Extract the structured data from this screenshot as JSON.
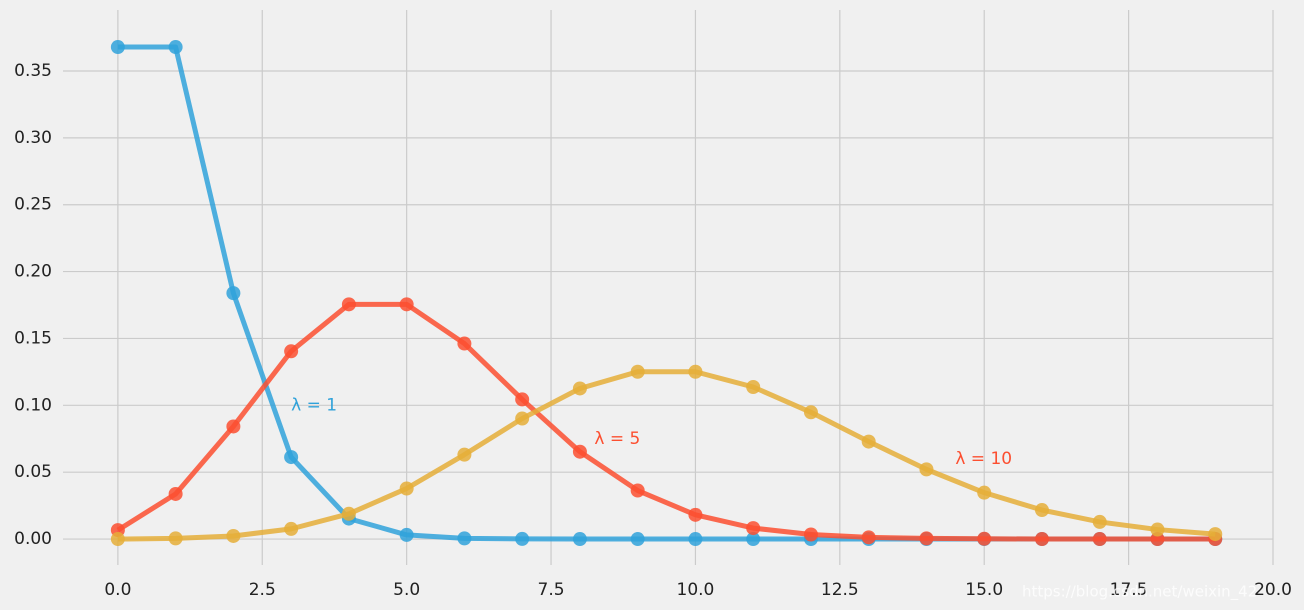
{
  "chart_data": {
    "type": "line",
    "x": [
      0,
      1,
      2,
      3,
      4,
      5,
      6,
      7,
      8,
      9,
      10,
      11,
      12,
      13,
      14,
      15,
      16,
      17,
      18,
      19
    ],
    "series": [
      {
        "color": "#30a2da",
        "values": [
          0.3679,
          0.3679,
          0.1839,
          0.0613,
          0.0153,
          0.0031,
          0.0005,
          0.0001,
          0.0,
          0.0,
          0.0,
          0.0,
          0.0,
          0.0,
          0.0,
          0.0,
          0.0,
          0.0,
          0.0,
          0.0
        ]
      },
      {
        "color": "#fc4f30",
        "values": [
          0.0067,
          0.0337,
          0.0842,
          0.1404,
          0.1755,
          0.1755,
          0.1462,
          0.1044,
          0.0653,
          0.0363,
          0.0181,
          0.0082,
          0.0034,
          0.0013,
          0.0005,
          0.0002,
          0.0,
          0.0,
          0.0,
          0.0
        ]
      },
      {
        "color": "#e5ae38",
        "values": [
          0.0,
          0.0005,
          0.0023,
          0.0076,
          0.0189,
          0.0378,
          0.0631,
          0.0901,
          0.1126,
          0.1251,
          0.1251,
          0.1137,
          0.0948,
          0.0729,
          0.0521,
          0.0347,
          0.0217,
          0.0128,
          0.0071,
          0.0037
        ]
      }
    ],
    "annotations": [
      {
        "text": "λ = 1",
        "x": 3.0,
        "y": 0.1,
        "color": "#30a2da"
      },
      {
        "text": "λ = 5",
        "x": 8.25,
        "y": 0.075,
        "color": "#fc4f30"
      },
      {
        "text": "λ = 10",
        "x": 14.5,
        "y": 0.06,
        "color": "#fc4f30"
      }
    ],
    "xlim": [
      -0.95,
      20.0
    ],
    "ylim": [
      -0.0194,
      0.3956
    ],
    "xticks": [
      {
        "value": 0,
        "label": "0.0"
      },
      {
        "value": 2.5,
        "label": "2.5"
      },
      {
        "value": 5,
        "label": "5.0"
      },
      {
        "value": 7.5,
        "label": "7.5"
      },
      {
        "value": 10,
        "label": "10.0"
      },
      {
        "value": 12.5,
        "label": "12.5"
      },
      {
        "value": 15,
        "label": "15.0"
      },
      {
        "value": 17.5,
        "label": "17.5"
      },
      {
        "value": 20,
        "label": "20.0"
      }
    ],
    "yticks": [
      {
        "value": 0,
        "label": "0.00"
      },
      {
        "value": 0.05,
        "label": "0.05"
      },
      {
        "value": 0.1,
        "label": "0.10"
      },
      {
        "value": 0.15,
        "label": "0.15"
      },
      {
        "value": 0.2,
        "label": "0.20"
      },
      {
        "value": 0.25,
        "label": "0.25"
      },
      {
        "value": 0.3,
        "label": "0.30"
      },
      {
        "value": 0.35,
        "label": "0.35"
      }
    ],
    "grid": true,
    "watermark": "https://blog.csdn.net/weixin_42"
  }
}
